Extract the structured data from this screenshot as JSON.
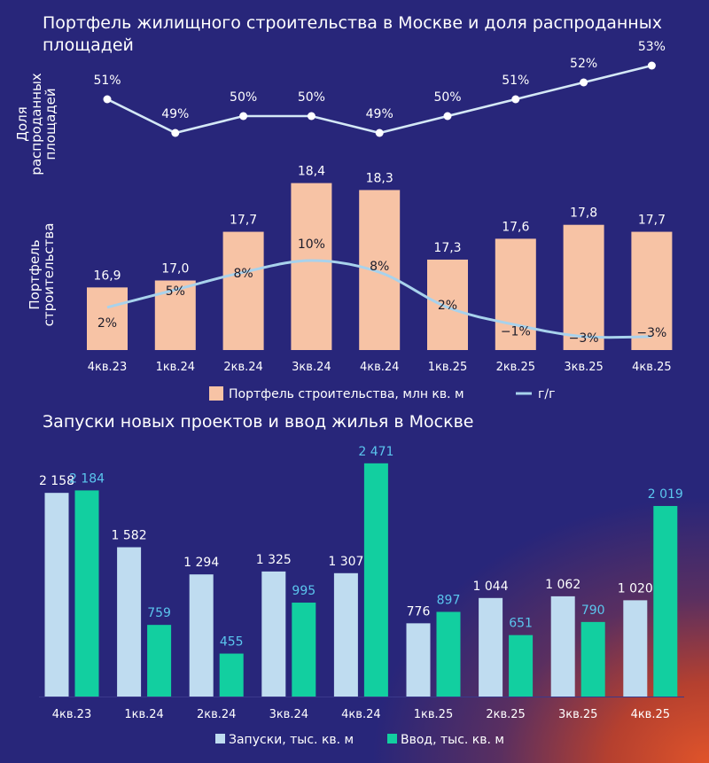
{
  "chart_data": [
    {
      "type": "line",
      "title": "Портфель жилищного строительства в Москве и доля распроданных площадей",
      "ylabel": "Доля распроданных площадей",
      "categories": [
        "4кв.23",
        "1кв.24",
        "2кв.24",
        "3кв.24",
        "4кв.24",
        "1кв.25",
        "2кв.25",
        "3кв.25",
        "4кв.25"
      ],
      "series": [
        {
          "name": "Доля распроданных площадей",
          "values": [
            51,
            49,
            50,
            50,
            49,
            50,
            51,
            52,
            53
          ],
          "labels": [
            "51%",
            "49%",
            "50%",
            "50%",
            "49%",
            "50%",
            "51%",
            "52%",
            "53%"
          ]
        }
      ],
      "ylim": [
        48,
        54
      ]
    },
    {
      "type": "bar",
      "ylabel": "Портфель строительства",
      "categories": [
        "4кв.23",
        "1кв.24",
        "2кв.24",
        "3кв.24",
        "4кв.24",
        "1кв.25",
        "2кв.25",
        "3кв.25",
        "4кв.25"
      ],
      "series": [
        {
          "name": "Портфель строительства, млн кв. м",
          "values": [
            16.9,
            17.0,
            17.7,
            18.4,
            18.3,
            17.3,
            17.6,
            17.8,
            17.7
          ],
          "labels": [
            "16,9",
            "17,0",
            "17,7",
            "18,4",
            "18,3",
            "17,3",
            "17,6",
            "17,8",
            "17,7"
          ],
          "color": "#f7c3a5"
        },
        {
          "name": "г/г",
          "values": [
            2,
            5,
            8,
            10,
            8,
            2,
            -1,
            -3,
            -3
          ],
          "labels": [
            "2%",
            "5%",
            "8%",
            "10%",
            "8%",
            "2%",
            "−1%",
            "−3%",
            "−3%"
          ],
          "color": "#a8d2ec"
        }
      ],
      "ylim": [
        16,
        18.7
      ]
    },
    {
      "type": "bar",
      "title": "Запуски новых проектов и ввод жилья в Москве",
      "categories": [
        "4кв.23",
        "1кв.24",
        "2кв.24",
        "3кв.24",
        "4кв.24",
        "1кв.25",
        "2кв.25",
        "3кв.25",
        "4кв.25"
      ],
      "series": [
        {
          "name": "Запуски, тыс. кв. м",
          "values": [
            2158,
            1582,
            1294,
            1325,
            1307,
            776,
            1044,
            1062,
            1020
          ],
          "labels": [
            "2 158",
            "1 582",
            "1 294",
            "1 325",
            "1 307",
            "776",
            "1 044",
            "1 062",
            "1 020"
          ],
          "color": "#bfdcf0"
        },
        {
          "name": "Ввод, тыс. кв. м",
          "values": [
            2184,
            759,
            455,
            995,
            2471,
            897,
            651,
            790,
            2019
          ],
          "labels": [
            "2 184",
            "759",
            "455",
            "995",
            "2 471",
            "897",
            "651",
            "790",
            "2 019"
          ],
          "color": "#12cfa0"
        }
      ],
      "ylim": [
        0,
        2600
      ]
    }
  ]
}
